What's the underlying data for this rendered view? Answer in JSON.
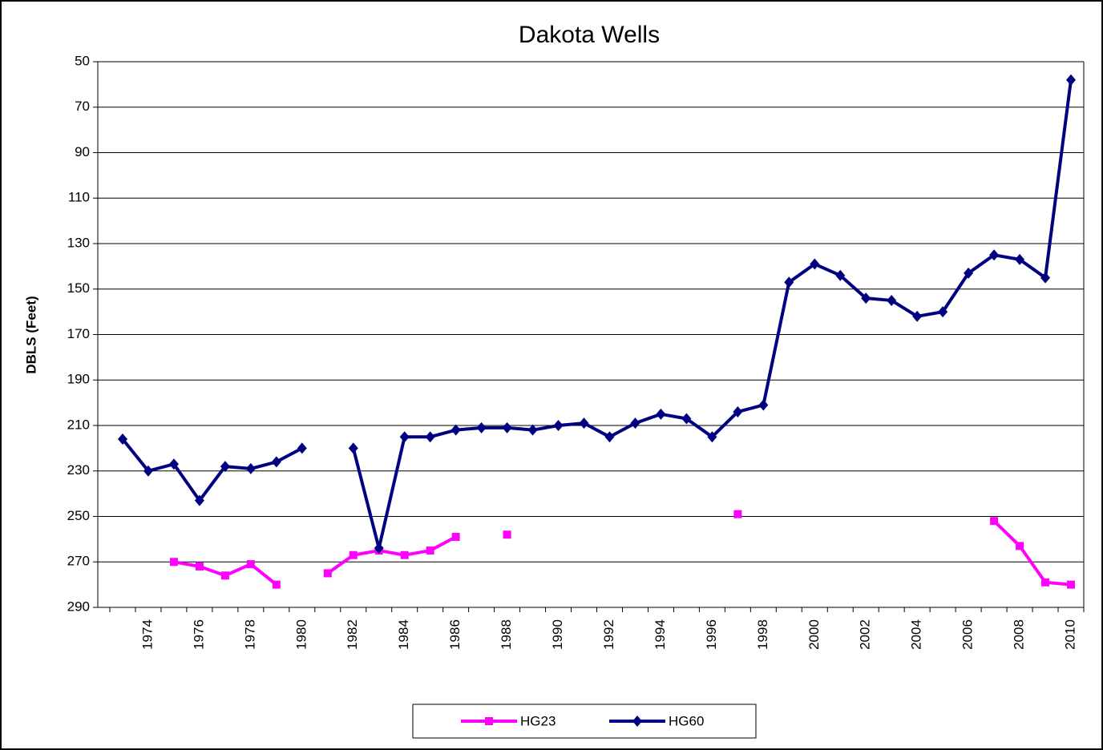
{
  "chart_data": {
    "type": "line",
    "title": "Dakota Wells",
    "y_label": "DBLS (Feet)",
    "categories": [
      null,
      "1974",
      null,
      "1976",
      null,
      "1978",
      null,
      "1980",
      null,
      "1982",
      null,
      "1984",
      null,
      "1986",
      null,
      "1988",
      null,
      "1990",
      null,
      "1992",
      null,
      "1994",
      null,
      "1996",
      null,
      "1998",
      null,
      "2000",
      null,
      "2002",
      null,
      "2004",
      null,
      "2006",
      null,
      "2008",
      null,
      "2010"
    ],
    "series": [
      {
        "name": "HG23",
        "color": "#ff00ff",
        "marker": "square",
        "values": [
          null,
          null,
          270,
          272,
          276,
          271,
          280,
          null,
          275,
          267,
          265,
          267,
          265,
          259,
          null,
          258,
          null,
          null,
          null,
          null,
          null,
          null,
          null,
          null,
          249,
          null,
          null,
          null,
          null,
          null,
          null,
          null,
          null,
          null,
          252,
          263,
          279,
          280
        ]
      },
      {
        "name": "HG60",
        "color": "#000080",
        "marker": "diamond",
        "values": [
          216,
          230,
          227,
          243,
          228,
          229,
          226,
          220,
          null,
          220,
          264,
          215,
          215,
          212,
          211,
          211,
          212,
          210,
          209,
          215,
          209,
          205,
          207,
          215,
          204,
          201,
          147,
          139,
          144,
          154,
          155,
          162,
          160,
          143,
          135,
          137,
          145,
          58
        ]
      }
    ],
    "ylim": [
      50,
      290
    ],
    "y_reversed": true,
    "yticks": [
      50,
      70,
      90,
      110,
      130,
      150,
      170,
      190,
      210,
      230,
      250,
      270,
      290
    ],
    "grid": true
  }
}
